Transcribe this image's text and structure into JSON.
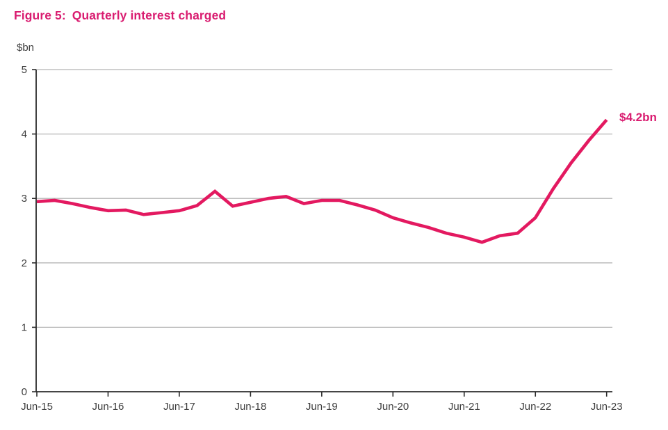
{
  "figure": {
    "label": "Figure 5:",
    "title": "Quarterly interest charged",
    "y_unit": "$bn",
    "end_label": "$4.2bn"
  },
  "colors": {
    "title_pink": "#D91C70",
    "line_pink": "#E31960",
    "axis": "#2b2b2b",
    "gridline": "#b5b5b5",
    "tick_text": "#3d3d3d"
  },
  "chart_data": {
    "type": "line",
    "title": "Figure 5: Quarterly interest charged",
    "xlabel": "",
    "ylabel": "$bn",
    "ylim": [
      0,
      5
    ],
    "y_ticks": [
      0,
      1,
      2,
      3,
      4,
      5
    ],
    "grid": "horizontal",
    "legend_position": "none",
    "frequency": "quarterly",
    "x_tick_labels": [
      "Jun-15",
      "Jun-16",
      "Jun-17",
      "Jun-18",
      "Jun-19",
      "Jun-20",
      "Jun-21",
      "Jun-22",
      "Jun-23"
    ],
    "categories": [
      "Jun-15",
      "Sep-15",
      "Dec-15",
      "Mar-16",
      "Jun-16",
      "Sep-16",
      "Dec-16",
      "Mar-17",
      "Jun-17",
      "Sep-17",
      "Dec-17",
      "Mar-18",
      "Jun-18",
      "Sep-18",
      "Dec-18",
      "Mar-19",
      "Jun-19",
      "Sep-19",
      "Dec-19",
      "Mar-20",
      "Jun-20",
      "Sep-20",
      "Dec-20",
      "Mar-21",
      "Jun-21",
      "Sep-21",
      "Dec-21",
      "Mar-22",
      "Jun-22",
      "Sep-22",
      "Dec-22",
      "Mar-23",
      "Jun-23"
    ],
    "series": [
      {
        "name": "Quarterly interest charged ($bn)",
        "values": [
          2.95,
          2.97,
          2.92,
          2.86,
          2.81,
          2.82,
          2.75,
          2.78,
          2.81,
          2.89,
          3.11,
          2.88,
          2.94,
          3.0,
          3.03,
          2.92,
          2.97,
          2.97,
          2.9,
          2.82,
          2.7,
          2.62,
          2.55,
          2.46,
          2.4,
          2.32,
          2.42,
          2.46,
          2.7,
          3.15,
          3.55,
          3.9,
          4.22
        ]
      }
    ],
    "annotation": {
      "text": "$4.2bn",
      "at": "Jun-23",
      "value": 4.22
    }
  }
}
